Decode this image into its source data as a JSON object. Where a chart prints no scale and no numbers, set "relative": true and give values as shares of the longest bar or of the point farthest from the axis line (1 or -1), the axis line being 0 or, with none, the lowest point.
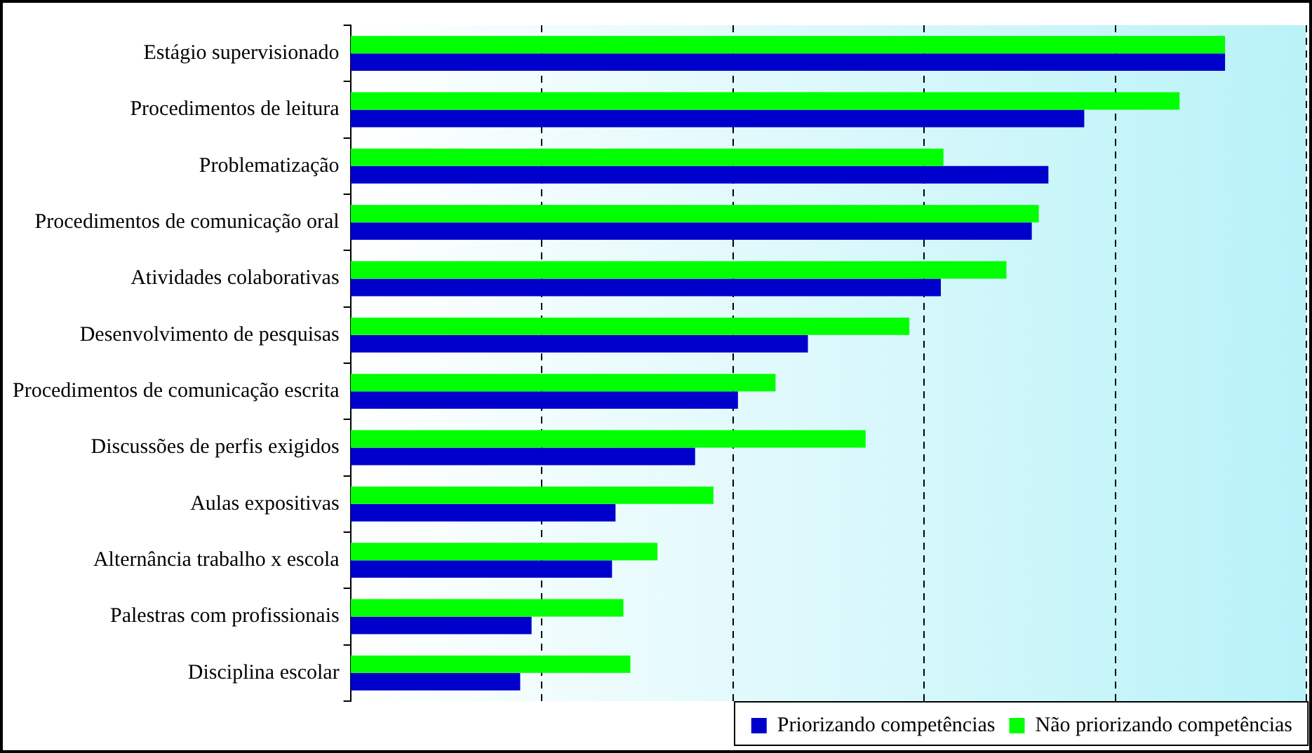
{
  "chart_data": {
    "type": "bar",
    "orientation": "horizontal",
    "relative": true,
    "grid": "x",
    "legend": "bottom right",
    "categories": [
      "Estágio supervisionado",
      "Procedimentos de leitura",
      "Problematização",
      "Procedimentos de comunicação oral",
      "Atividades colaborativas",
      "Desenvolvimento de pesquisas",
      "Procedimentos de comunicação escrita",
      "Discussões de perfis exigidos",
      "Aulas expositivas",
      "Alternância trabalho x escola",
      "Palestras com profissionais",
      "Disciplina escolar"
    ],
    "series": [
      {
        "name": "Não priorizando competências",
        "color": "#00ff00",
        "values": [
          1,
          0.948,
          0.678,
          0.787,
          0.75,
          0.639,
          0.486,
          0.589,
          0.415,
          0.351,
          0.312,
          0.32
        ]
      },
      {
        "name": "Priorizando competências",
        "color": "#0000cc",
        "values": [
          1,
          0.839,
          0.798,
          0.779,
          0.675,
          0.523,
          0.443,
          0.394,
          0.303,
          0.299,
          0.207,
          0.194
        ]
      }
    ]
  }
}
